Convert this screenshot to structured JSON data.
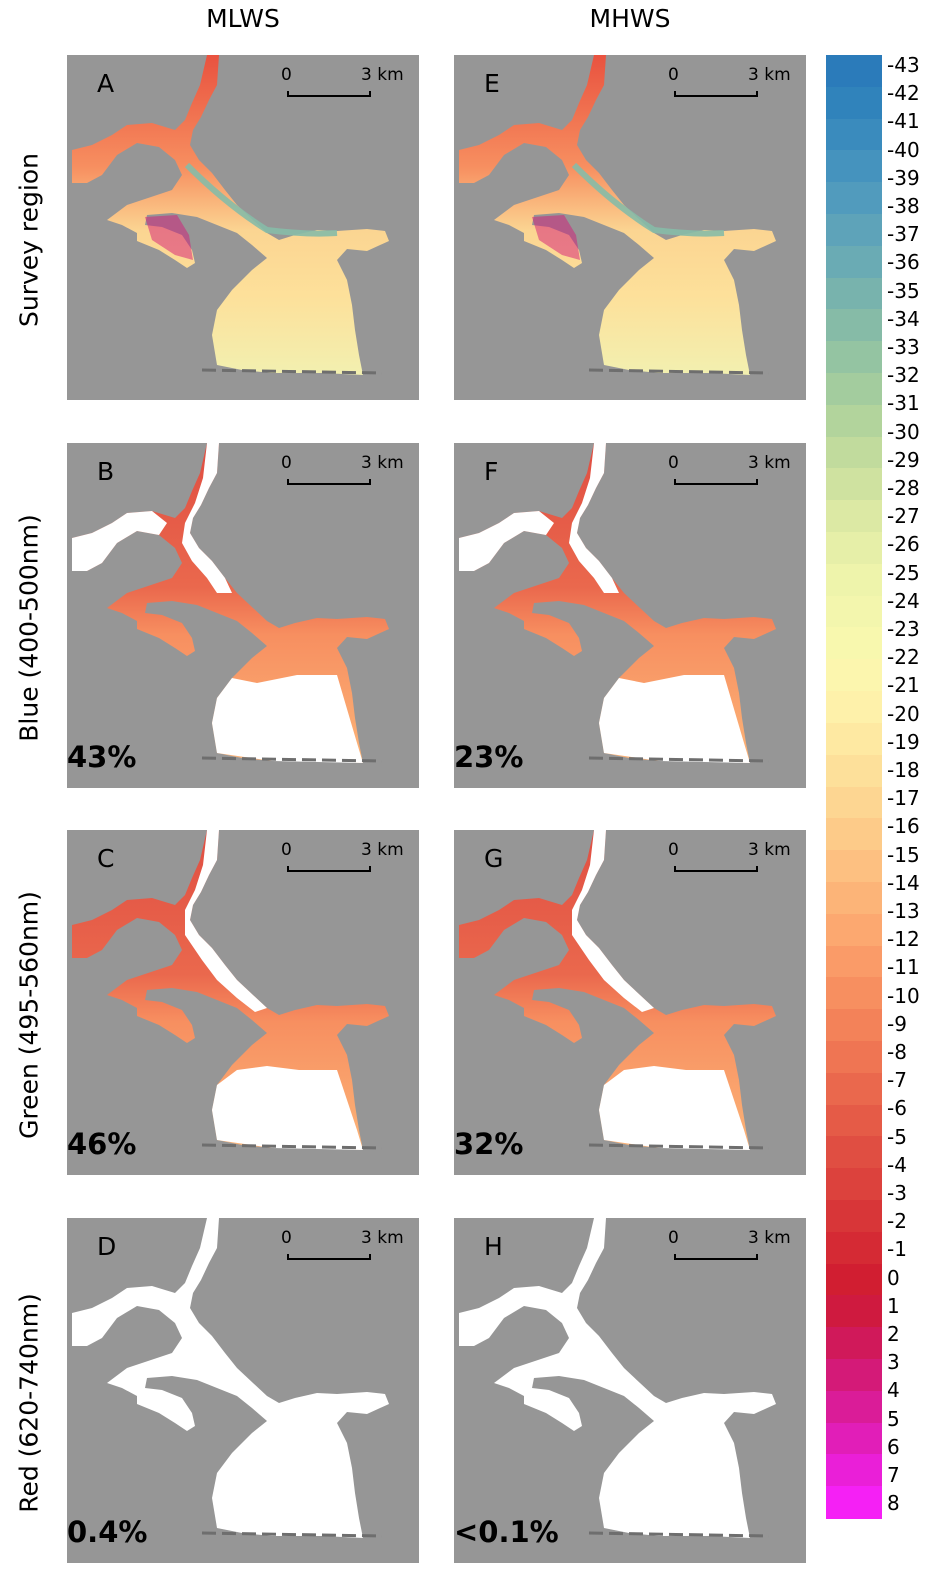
{
  "columns": [
    "MLWS",
    "MHWS"
  ],
  "rows": [
    "Survey region",
    "Blue (400-500nm)",
    "Green (495-560nm)",
    "Red (620-740nm)"
  ],
  "scale": {
    "zero": "0",
    "three": "3 km"
  },
  "panels": [
    {
      "letter": "A",
      "percent": "",
      "row": 0,
      "col": 0
    },
    {
      "letter": "E",
      "percent": "",
      "row": 0,
      "col": 1
    },
    {
      "letter": "B",
      "percent": "43%",
      "row": 1,
      "col": 0
    },
    {
      "letter": "F",
      "percent": "23%",
      "row": 1,
      "col": 1
    },
    {
      "letter": "C",
      "percent": "46%",
      "row": 2,
      "col": 0
    },
    {
      "letter": "G",
      "percent": "32%",
      "row": 2,
      "col": 1
    },
    {
      "letter": "D",
      "percent": "0.4%",
      "row": 3,
      "col": 0
    },
    {
      "letter": "H",
      "percent": "<0.1%",
      "row": 3,
      "col": 1
    }
  ],
  "legend": {
    "labels": [
      "-43",
      "-42",
      "-41",
      "-40",
      "-39",
      "-38",
      "-37",
      "-36",
      "-35",
      "-34",
      "-33",
      "-32",
      "-31",
      "-30",
      "-29",
      "-28",
      "-27",
      "-26",
      "-25",
      "-24",
      "-23",
      "-22",
      "-21",
      "-20",
      "-19",
      "-18",
      "-17",
      "-16",
      "-15",
      "-14",
      "-13",
      "-12",
      "-11",
      "-10",
      "-9",
      "-8",
      "-7",
      "-6",
      "-5",
      "-4",
      "-3",
      "-2",
      "-1",
      "0",
      "1",
      "2",
      "3",
      "4",
      "5",
      "6",
      "7",
      "8"
    ],
    "colors": [
      "#2b7bba",
      "#3083bb",
      "#3a8bbd",
      "#4593be",
      "#519bbd",
      "#5ea3b9",
      "#6aabb4",
      "#78b3ad",
      "#86bba7",
      "#94c4a2",
      "#a3cc9e",
      "#b2d49c",
      "#c1db9d",
      "#cfe2a0",
      "#dce9a4",
      "#e6efa8",
      "#eef4ab",
      "#f3f6ad",
      "#f8f8ae",
      "#fcf6ae",
      "#fef1aa",
      "#fee9a2",
      "#fde09a",
      "#fdd692",
      "#fdcb89",
      "#fdc081",
      "#fcb478",
      "#fca870",
      "#fa9b68",
      "#f78f60",
      "#f38259",
      "#ef7553",
      "#ea684d",
      "#e55b47",
      "#e04e42",
      "#dc423d",
      "#d83638",
      "#d52a34",
      "#d11e31",
      "#cf1a3f",
      "#d0195a",
      "#d41a78",
      "#da1c98",
      "#e11eb8",
      "#ea1fd8",
      "#f520f5"
    ]
  },
  "colors": {
    "land": "#969696",
    "coast_line": "#6e6e6e"
  }
}
